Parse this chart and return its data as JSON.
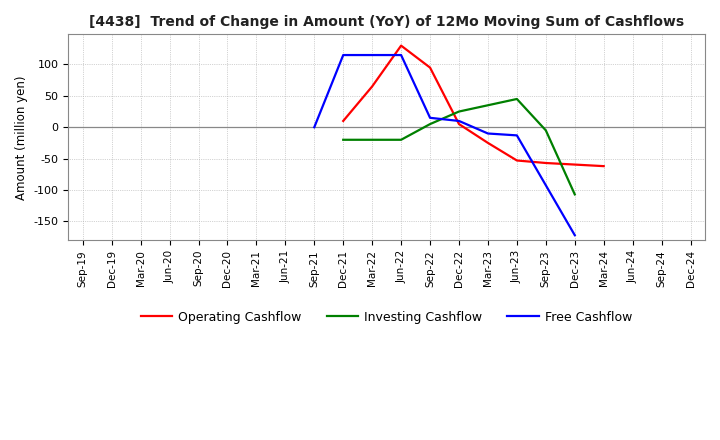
{
  "title": "[4438]  Trend of Change in Amount (YoY) of 12Mo Moving Sum of Cashflows",
  "ylabel": "Amount (million yen)",
  "background_color": "#ffffff",
  "operating": {
    "label": "Operating Cashflow",
    "color": "#ff0000",
    "x_idx": [
      9,
      10,
      11,
      12,
      13,
      14,
      15,
      16,
      18
    ],
    "y": [
      10,
      65,
      130,
      95,
      5,
      -25,
      -53,
      -57,
      -62
    ]
  },
  "investing": {
    "label": "Investing Cashflow",
    "color": "#008000",
    "x_idx": [
      9,
      10,
      11,
      12,
      13,
      14,
      15,
      16,
      17
    ],
    "y": [
      -20,
      -20,
      -20,
      5,
      25,
      35,
      45,
      -5,
      -107
    ]
  },
  "free": {
    "label": "Free Cashflow",
    "color": "#0000ff",
    "x_idx": [
      8,
      9,
      10,
      11,
      12,
      13,
      14,
      15,
      17
    ],
    "y": [
      0,
      115,
      115,
      115,
      15,
      10,
      -10,
      -13,
      -172
    ]
  },
  "x_ticks": [
    "Sep-19",
    "Dec-19",
    "Mar-20",
    "Jun-20",
    "Sep-20",
    "Dec-20",
    "Mar-21",
    "Jun-21",
    "Sep-21",
    "Dec-21",
    "Mar-22",
    "Jun-22",
    "Sep-22",
    "Dec-22",
    "Mar-23",
    "Jun-23",
    "Sep-23",
    "Dec-23",
    "Mar-24",
    "Jun-24",
    "Sep-24",
    "Dec-24"
  ],
  "ylim_min": -180,
  "ylim_max": 148,
  "yticks": [
    -150,
    -100,
    -50,
    0,
    50,
    100
  ]
}
